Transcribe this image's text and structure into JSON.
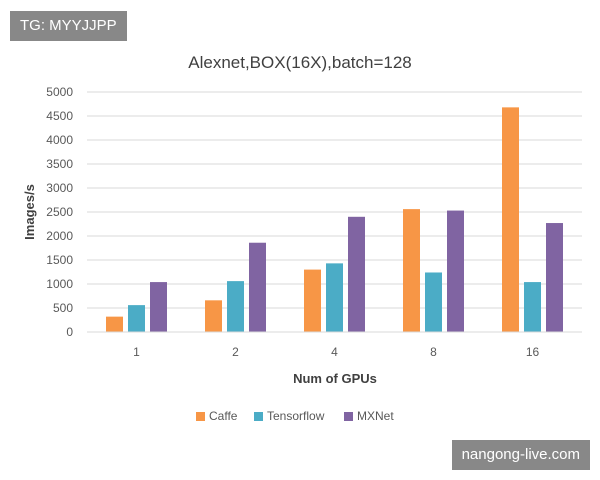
{
  "watermarks": {
    "top": "TG: MYYJJPP",
    "bottom": "nangong-live.com"
  },
  "chart_data": {
    "type": "bar",
    "title": "Alexnet,BOX(16X),batch=128",
    "xlabel": "Num of GPUs",
    "ylabel": "Images/s",
    "categories": [
      "1",
      "2",
      "4",
      "8",
      "16"
    ],
    "ylim": [
      0,
      5000
    ],
    "yticks": [
      0,
      500,
      1000,
      1500,
      2000,
      2500,
      3000,
      3500,
      4000,
      4500,
      5000
    ],
    "grid": true,
    "legend_position": "bottom",
    "series": [
      {
        "name": "Caffe",
        "color": "#F79646",
        "values": [
          320,
          660,
          1300,
          2560,
          4680
        ]
      },
      {
        "name": "Tensorflow",
        "color": "#4BACC6",
        "values": [
          560,
          1060,
          1430,
          1240,
          1040
        ]
      },
      {
        "name": "MXNet",
        "color": "#8064A2",
        "values": [
          1040,
          1860,
          2400,
          2530,
          2270
        ]
      }
    ]
  }
}
